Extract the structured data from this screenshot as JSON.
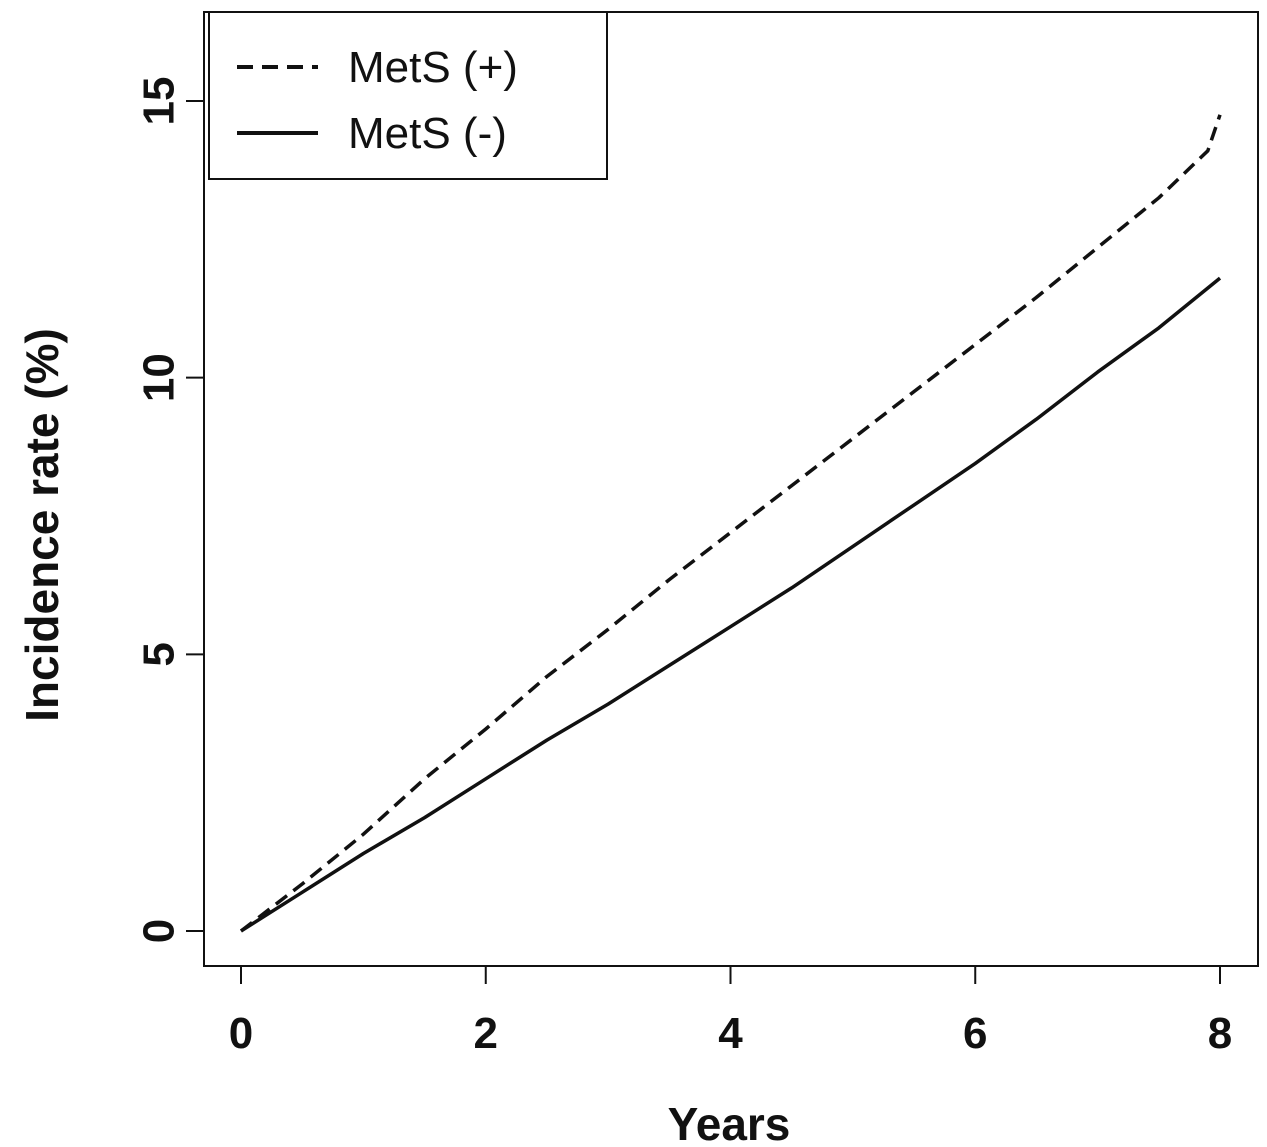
{
  "chart_data": {
    "type": "line",
    "title": "",
    "xlabel": "Years",
    "ylabel": "Incidence rate (%)",
    "xlim": [
      0,
      8
    ],
    "ylim": [
      0,
      15
    ],
    "xticks": [
      0,
      2,
      4,
      6,
      8
    ],
    "yticks": [
      0,
      5,
      10,
      15
    ],
    "grid": false,
    "legend_position": "top-left",
    "series": [
      {
        "name": "MetS (+)",
        "line_style": "dashed",
        "color": "#111111",
        "x": [
          0,
          0.5,
          1,
          1.5,
          2,
          2.5,
          3,
          3.5,
          4,
          4.5,
          5,
          5.5,
          6,
          6.5,
          7,
          7.5,
          7.9,
          8
        ],
        "y": [
          0,
          0.85,
          1.75,
          2.75,
          3.65,
          4.6,
          5.45,
          6.35,
          7.2,
          8.05,
          8.9,
          9.75,
          10.6,
          11.45,
          12.35,
          13.25,
          14.1,
          14.75
        ]
      },
      {
        "name": "MetS (-)",
        "line_style": "solid",
        "color": "#111111",
        "x": [
          0,
          0.5,
          1,
          1.5,
          2,
          2.5,
          3,
          3.5,
          4,
          4.5,
          5,
          5.5,
          6,
          6.5,
          7,
          7.5,
          8
        ],
        "y": [
          0,
          0.7,
          1.4,
          2.05,
          2.75,
          3.45,
          4.1,
          4.8,
          5.5,
          6.2,
          6.95,
          7.7,
          8.45,
          9.25,
          10.1,
          10.9,
          11.8
        ]
      }
    ]
  }
}
